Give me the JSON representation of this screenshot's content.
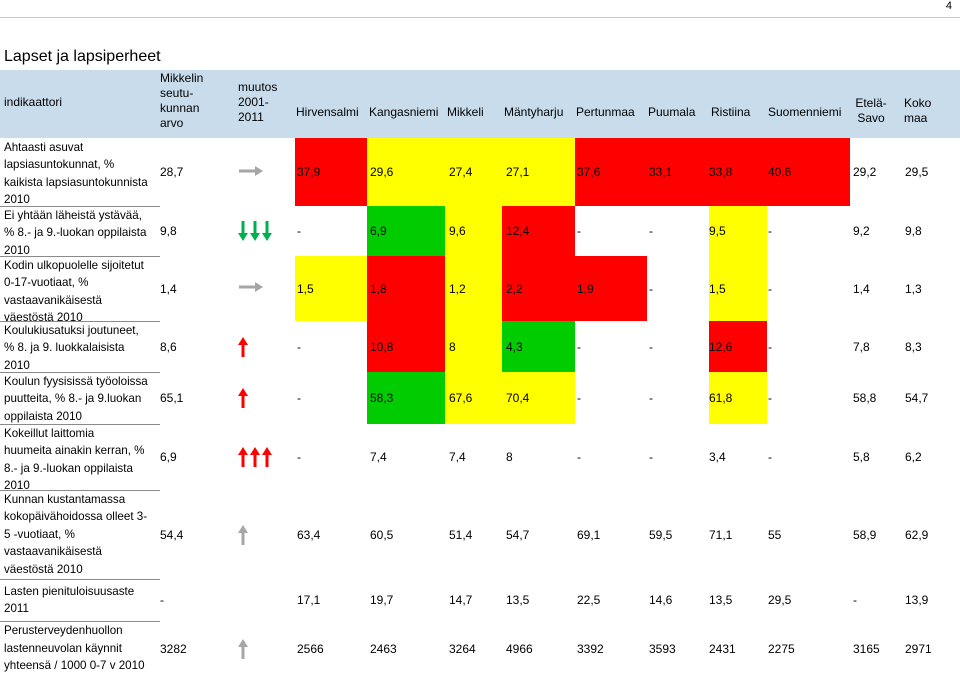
{
  "page_number": "4",
  "title": "Lapset ja lapsiperheet",
  "colors": {
    "red": "#ff0000",
    "yellow": "#ffff00",
    "green": "#00cc00",
    "header_blue": "#c9dcec",
    "arrow_red": "#ff0000",
    "arrow_green": "#00b050",
    "arrow_gray": "#a6a6a6"
  },
  "header": {
    "indicator": "indikaattori",
    "mikkeli_lines": [
      "Mikkelin",
      "seutu-",
      "kunnan",
      "arvo"
    ],
    "change_lines": [
      "muutos",
      "2001-",
      "2011"
    ],
    "municipalities": [
      "Hirvensalmi",
      "Kangasniemi",
      "Mikkeli",
      "Mäntyharju",
      "Pertunmaa",
      "Puumala",
      "Ristiina",
      "Suomenniemi"
    ],
    "etela_savo_lines": [
      "Etelä-",
      "Savo"
    ],
    "koko_maa_lines": [
      "Koko",
      "maa"
    ]
  },
  "rows": [
    {
      "indicator_lines": [
        "Ahtaasti asuvat",
        "lapsiasuntokunnat, %",
        "kaikista lapsiasuntokunnista",
        "2010"
      ],
      "mikkeli": "28,7",
      "trend": [
        {
          "dir": "right",
          "color": "gray"
        }
      ],
      "values": [
        "37,9",
        "29,6",
        "27,4",
        "27,1",
        "37,6",
        "33,1",
        "33,8",
        "40,6",
        "29,2",
        "29,5"
      ],
      "colors": [
        "red",
        "yellow",
        "yellow",
        "yellow",
        "red",
        "red",
        "red",
        "red",
        "none",
        "none"
      ]
    },
    {
      "indicator_lines": [
        "Ei yhtään läheistä ystävää,",
        "% 8.- ja 9.-luokan oppilaista",
        "2010"
      ],
      "mikkeli": "9,8",
      "trend": [
        {
          "dir": "down",
          "color": "green"
        },
        {
          "dir": "down",
          "color": "green"
        },
        {
          "dir": "down",
          "color": "green"
        }
      ],
      "values": [
        "-",
        "6,9",
        "9,6",
        "12,4",
        "-",
        "-",
        "9,5",
        "-",
        "9,2",
        "9,8"
      ],
      "colors": [
        "none",
        "green",
        "yellow",
        "red",
        "none",
        "none",
        "yellow",
        "none",
        "none",
        "none"
      ]
    },
    {
      "indicator_lines": [
        "Kodin ulkopuolelle sijoitetut",
        "0-17-vuotiaat, %",
        "vastaavanikäisestä",
        "väestöstä 2010"
      ],
      "mikkeli": "1,4",
      "trend": [
        {
          "dir": "right",
          "color": "gray"
        }
      ],
      "values": [
        "1,5",
        "1,8",
        "1,2",
        "2,2",
        "1,9",
        "-",
        "1,5",
        "-",
        "1,4",
        "1,3"
      ],
      "colors": [
        "yellow",
        "red",
        "yellow",
        "red",
        "red",
        "none",
        "yellow",
        "none",
        "none",
        "none"
      ]
    },
    {
      "indicator_lines": [
        "Koulukiusatuksi joutuneet,",
        "% 8. ja 9. luokkalaisista",
        "2010"
      ],
      "mikkeli": "8,6",
      "trend": [
        {
          "dir": "up",
          "color": "red"
        }
      ],
      "values": [
        "-",
        "10,8",
        "8",
        "4,3",
        "-",
        "-",
        "12,6",
        "-",
        "7,8",
        "8,3"
      ],
      "colors": [
        "none",
        "red",
        "yellow",
        "green",
        "none",
        "none",
        "red",
        "none",
        "none",
        "none"
      ]
    },
    {
      "indicator_lines": [
        "Koulun fyysisissä työoloissa",
        "puutteita, % 8.- ja 9.luokan",
        "oppilaista 2010"
      ],
      "mikkeli": "65,1",
      "trend": [
        {
          "dir": "up",
          "color": "red"
        }
      ],
      "values": [
        "-",
        "58,3",
        "67,6",
        "70,4",
        "-",
        "-",
        "61,8",
        "-",
        "58,8",
        "54,7"
      ],
      "colors": [
        "none",
        "green",
        "yellow",
        "yellow",
        "none",
        "none",
        "yellow",
        "none",
        "none",
        "none"
      ]
    },
    {
      "indicator_lines": [
        "Kokeillut laittomia",
        "huumeita ainakin kerran, %",
        "8.- ja 9.-luokan oppilaista",
        "2010"
      ],
      "mikkeli": "6,9",
      "trend": [
        {
          "dir": "up",
          "color": "red"
        },
        {
          "dir": "up",
          "color": "red"
        },
        {
          "dir": "up",
          "color": "red"
        }
      ],
      "values": [
        "-",
        "7,4",
        "7,4",
        "8",
        "-",
        "-",
        "3,4",
        "-",
        "5,8",
        "6,2"
      ],
      "colors": [
        "none",
        "none",
        "none",
        "none",
        "none",
        "none",
        "none",
        "none",
        "none",
        "none"
      ]
    },
    {
      "indicator_lines": [
        "Kunnan kustantamassa",
        "kokopäivähoidossa olleet 3-",
        "5 -vuotiaat, %",
        "vastaavanikäisestä",
        "väestöstä 2010"
      ],
      "mikkeli": "54,4",
      "trend": [
        {
          "dir": "up",
          "color": "gray"
        }
      ],
      "values": [
        "63,4",
        "60,5",
        "51,4",
        "54,7",
        "69,1",
        "59,5",
        "71,1",
        "55",
        "58,9",
        "62,9"
      ],
      "colors": [
        "none",
        "none",
        "none",
        "none",
        "none",
        "none",
        "none",
        "none",
        "none",
        "none"
      ]
    },
    {
      "indicator_lines": [
        "Lasten pienituloisuusaste",
        "2011"
      ],
      "mikkeli": "-",
      "trend": [],
      "values": [
        "17,1",
        "19,7",
        "14,7",
        "13,5",
        "22,5",
        "14,6",
        "13,5",
        "29,5",
        "-",
        "13,9"
      ],
      "colors": [
        "none",
        "none",
        "none",
        "none",
        "none",
        "none",
        "none",
        "none",
        "none",
        "none"
      ]
    },
    {
      "indicator_lines": [
        "Perusterveydenhuollon",
        "lastenneuvolan käynnit",
        "yhteensä / 1000 0-7 v 2010"
      ],
      "mikkeli": "3282",
      "trend": [
        {
          "dir": "up",
          "color": "gray"
        }
      ],
      "values": [
        "2566",
        "2463",
        "3264",
        "4966",
        "3392",
        "3593",
        "2431",
        "2275",
        "3165",
        "2971"
      ],
      "colors": [
        "none",
        "none",
        "none",
        "none",
        "none",
        "none",
        "none",
        "none",
        "none",
        "none"
      ]
    }
  ]
}
